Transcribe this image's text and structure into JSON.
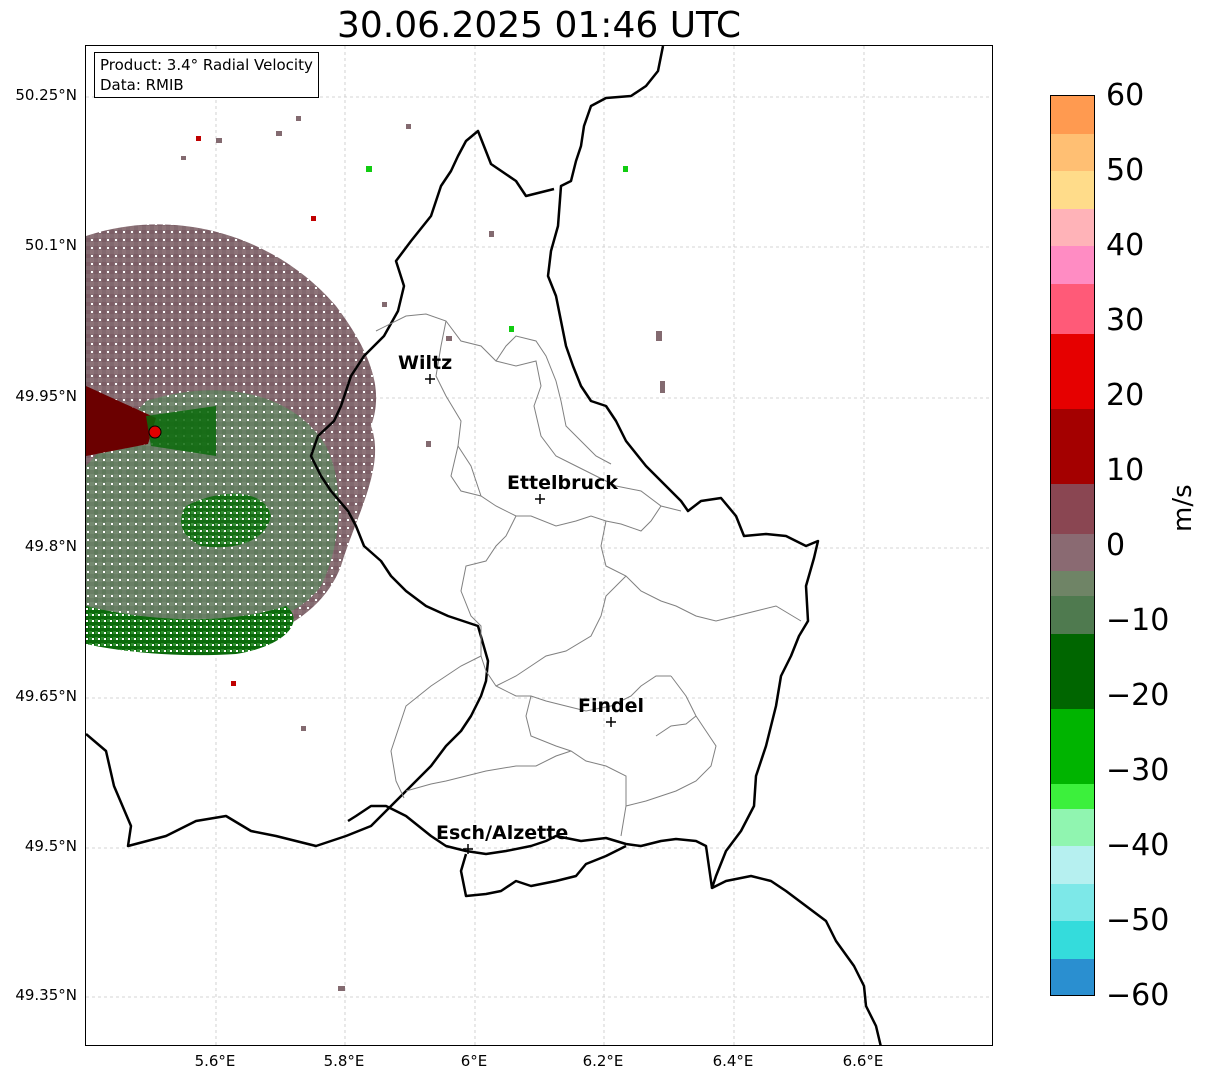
{
  "title": "30.06.2025 01:46 UTC",
  "info_box": {
    "product": "Product: 3.4° Radial Velocity",
    "data_source": "Data: RMIB"
  },
  "lat_labels": [
    "50.25°N",
    "50.1°N",
    "49.95°N",
    "49.8°N",
    "49.65°N",
    "49.5°N",
    "49.35°N"
  ],
  "lon_labels": [
    "5.6°E",
    "5.8°E",
    "6°E",
    "6.2°E",
    "6.4°E",
    "6.6°E"
  ],
  "colorbar": {
    "unit": "m/s",
    "ticks": [
      "60",
      "50",
      "40",
      "30",
      "20",
      "10",
      "0",
      "−10",
      "−20",
      "−30",
      "−40",
      "−50",
      "−60"
    ],
    "range": [
      -60,
      60
    ]
  },
  "cities": [
    {
      "name": "Wiltz",
      "lon": 5.93,
      "lat": 49.97
    },
    {
      "name": "Ettelbruck",
      "lon": 6.1,
      "lat": 49.85
    },
    {
      "name": "Findel",
      "lon": 6.21,
      "lat": 49.63
    },
    {
      "name": "Esch/Alzette",
      "lon": 5.99,
      "lat": 49.5
    }
  ],
  "radar_site": {
    "lon": 5.51,
    "lat": 49.91,
    "color": "#e00000"
  },
  "colors": {
    "positive": "#7a0000",
    "negative": "#006400",
    "near_zero_pos": "#8a6a72",
    "near_zero_neg": "#5f7f5f"
  }
}
